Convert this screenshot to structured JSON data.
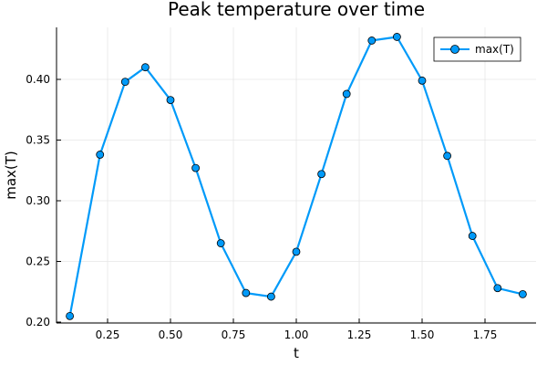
{
  "chart_data": {
    "type": "line",
    "title": "Peak temperature over time",
    "xlabel": "t",
    "ylabel": "max(T)",
    "xlim": [
      0.05,
      1.955
    ],
    "ylim": [
      0.1985,
      0.4425
    ],
    "xticks": [
      0.25,
      0.5,
      0.75,
      1.0,
      1.25,
      1.5,
      1.75
    ],
    "xtick_labels": [
      "0.25",
      "0.50",
      "0.75",
      "1.00",
      "1.25",
      "1.50",
      "1.75"
    ],
    "yticks": [
      0.2,
      0.25,
      0.3,
      0.35,
      0.4
    ],
    "ytick_labels": [
      "0.20",
      "0.25",
      "0.30",
      "0.35",
      "0.40"
    ],
    "grid": true,
    "legend_position": "top-right",
    "series": [
      {
        "name": "max(T)",
        "color": "#009af9",
        "marker": "circle",
        "x": [
          0.1,
          0.22,
          0.32,
          0.4,
          0.5,
          0.6,
          0.7,
          0.8,
          0.9,
          1.0,
          1.1,
          1.2,
          1.3,
          1.4,
          1.5,
          1.6,
          1.7,
          1.8,
          1.9
        ],
        "y": [
          0.205,
          0.338,
          0.398,
          0.41,
          0.383,
          0.327,
          0.265,
          0.224,
          0.221,
          0.258,
          0.322,
          0.388,
          0.432,
          0.435,
          0.399,
          0.337,
          0.271,
          0.228,
          0.223
        ]
      }
    ]
  },
  "legend": {
    "label": "max(T)"
  }
}
